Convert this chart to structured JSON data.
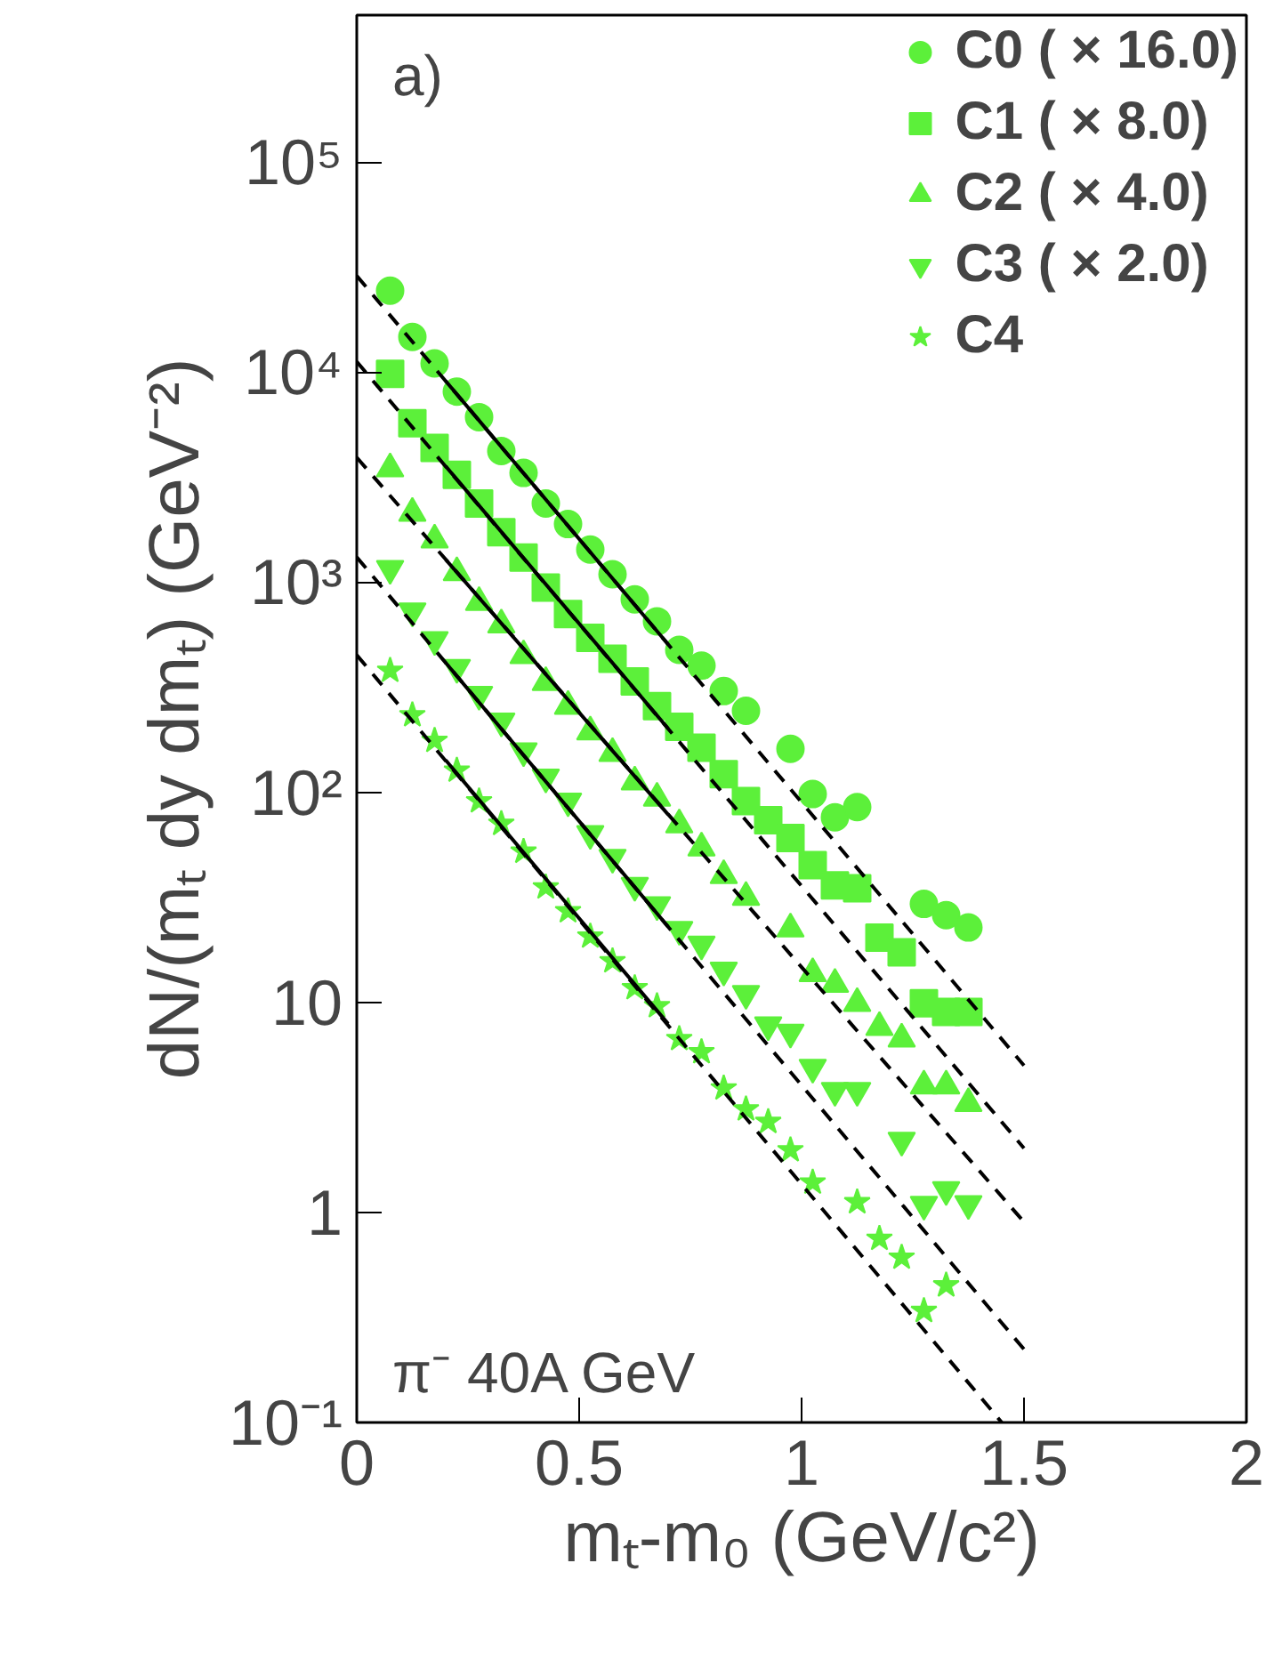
{
  "chart_data": {
    "type": "scatter",
    "xlabel": "mₜ-m₀ (GeV/c²)",
    "ylabel": "dN/(mₜ dy dmₜ) (GeV⁻²)",
    "annotations": [
      "a)",
      "π⁻ 40A GeV"
    ],
    "log": "y",
    "grid": false,
    "legend": "top right",
    "xlim": [
      0,
      2
    ],
    "ylim": [
      0.1,
      500000
    ],
    "xticks": [
      0,
      0.5,
      1,
      1.5,
      2
    ],
    "yticks": [
      {
        "value": 0.1,
        "label": "10⁻¹"
      },
      1,
      10,
      {
        "value": 100,
        "label": "10²"
      },
      {
        "value": 1000,
        "label": "10³"
      },
      {
        "value": 10000,
        "label": "10⁴"
      },
      {
        "value": 100000,
        "label": "10⁵"
      }
    ],
    "series": [
      {
        "name": "C0 ( × 16.0)",
        "color": "#5cf03a",
        "marker": "circle",
        "x": [
          0.075,
          0.125,
          0.175,
          0.225,
          0.275,
          0.325,
          0.375,
          0.425,
          0.475,
          0.525,
          0.575,
          0.625,
          0.675,
          0.725,
          0.775,
          0.825,
          0.875,
          0.975,
          1.025,
          1.075,
          1.125,
          1.275,
          1.325,
          1.375
        ],
        "values": [
          24400,
          14700,
          11000,
          8070,
          6100,
          4210,
          3310,
          2370,
          1890,
          1430,
          1090,
          828,
          651,
          476,
          400,
          303,
          244,
          161,
          98,
          76,
          85,
          29.4,
          26,
          22.7
        ]
      },
      {
        "name": "C1 ( × 8.0)",
        "color": "#5cf03a",
        "marker": "square",
        "x": [
          0.075,
          0.125,
          0.175,
          0.225,
          0.275,
          0.325,
          0.375,
          0.425,
          0.475,
          0.525,
          0.575,
          0.625,
          0.675,
          0.725,
          0.775,
          0.825,
          0.875,
          0.925,
          0.975,
          1.025,
          1.075,
          1.125,
          1.175,
          1.225,
          1.275,
          1.325,
          1.375
        ],
        "values": [
          9810,
          5710,
          4350,
          3240,
          2370,
          1730,
          1310,
          943,
          704,
          543,
          432,
          337,
          257,
          205,
          163,
          122,
          90.7,
          73.6,
          60.6,
          45,
          36,
          34.9,
          20.3,
          17.3,
          9.9,
          9.0,
          9.0
        ]
      },
      {
        "name": "C2 ( × 4.0)",
        "color": "#5cf03a",
        "marker": "triangle",
        "x": [
          0.075,
          0.125,
          0.175,
          0.225,
          0.275,
          0.325,
          0.375,
          0.425,
          0.475,
          0.525,
          0.575,
          0.625,
          0.675,
          0.725,
          0.775,
          0.825,
          0.875,
          0.975,
          1.025,
          1.075,
          1.125,
          1.175,
          1.225,
          1.275,
          1.325,
          1.375
        ],
        "values": [
          3470,
          2130,
          1590,
          1110,
          802,
          626,
          447,
          333,
          257,
          194,
          153,
          112,
          93.8,
          70,
          54.3,
          40.2,
          31.6,
          22.4,
          13.7,
          12.2,
          9.9,
          7.6,
          6.7,
          4.0,
          4.0,
          3.3
        ]
      },
      {
        "name": "C3 ( × 2.0)",
        "color": "#5cf03a",
        "marker": "triangle_down",
        "x": [
          0.075,
          0.125,
          0.175,
          0.225,
          0.275,
          0.325,
          0.375,
          0.425,
          0.475,
          0.525,
          0.575,
          0.625,
          0.675,
          0.725,
          0.775,
          0.825,
          0.875,
          0.925,
          0.975,
          1.025,
          1.075,
          1.125,
          1.225,
          1.275,
          1.325,
          1.375
        ],
        "values": [
          1160,
          728,
          532,
          392,
          292,
          218,
          157,
          118,
          90.7,
          63.5,
          48.9,
          36,
          29.1,
          22.2,
          18.9,
          14.2,
          11.0,
          7.8,
          7.2,
          4.9,
          3.8,
          3.8,
          2.2,
          1.09,
          1.28,
          1.1
        ]
      },
      {
        "name": "C4",
        "color": "#5cf03a",
        "marker": "star",
        "x": [
          0.075,
          0.125,
          0.175,
          0.225,
          0.275,
          0.325,
          0.375,
          0.425,
          0.475,
          0.525,
          0.575,
          0.625,
          0.675,
          0.725,
          0.775,
          0.825,
          0.875,
          0.925,
          0.975,
          1.025,
          1.125,
          1.175,
          1.225,
          1.275,
          1.325
        ],
        "values": [
          379,
          233,
          176,
          127,
          90.7,
          70.8,
          52.2,
          35.3,
          27.2,
          20.6,
          15.7,
          11.7,
          9.6,
          6.7,
          5.8,
          3.9,
          3.1,
          2.7,
          1.98,
          1.39,
          1.12,
          0.75,
          0.61,
          0.34,
          0.45
        ]
      },
      {
        "type": "line",
        "color": "#000000",
        "line_style": "dashed",
        "x": [
          0,
          1.5
        ],
        "values": [
          28700,
          5.0
        ]
      },
      {
        "type": "line",
        "color": "#000000",
        "line_style": "dashed",
        "x": [
          0,
          1.5
        ],
        "values": [
          11200,
          2.02
        ]
      },
      {
        "type": "line",
        "color": "#000000",
        "line_style": "dashed",
        "x": [
          0,
          1.5
        ],
        "values": [
          3920,
          0.9
        ]
      },
      {
        "type": "line",
        "color": "#000000",
        "line_style": "dashed",
        "x": [
          0,
          1.5
        ],
        "values": [
          1315,
          0.223
        ]
      },
      {
        "type": "line",
        "color": "#000000",
        "line_style": "dashed",
        "x": [
          0,
          1.45
        ],
        "values": [
          450,
          0.1
        ]
      },
      {
        "type": "line",
        "color": "#000000",
        "line_style": "solid",
        "x": [
          0.2,
          0.7
        ],
        "values": [
          9060,
          506
        ]
      },
      {
        "type": "line",
        "color": "#000000",
        "line_style": "solid",
        "x": [
          0.2,
          0.7
        ],
        "values": [
          3560,
          201
        ]
      },
      {
        "type": "line",
        "color": "#000000",
        "line_style": "solid",
        "x": [
          0.2,
          0.7
        ],
        "values": [
          1280,
          78.3
        ]
      },
      {
        "type": "line",
        "color": "#000000",
        "line_style": "solid",
        "x": [
          0.2,
          0.7
        ],
        "values": [
          413,
          22.9
        ]
      },
      {
        "type": "line",
        "color": "#000000",
        "line_style": "solid",
        "x": [
          0.2,
          0.7
        ],
        "values": [
          142,
          7.9
        ]
      }
    ]
  }
}
